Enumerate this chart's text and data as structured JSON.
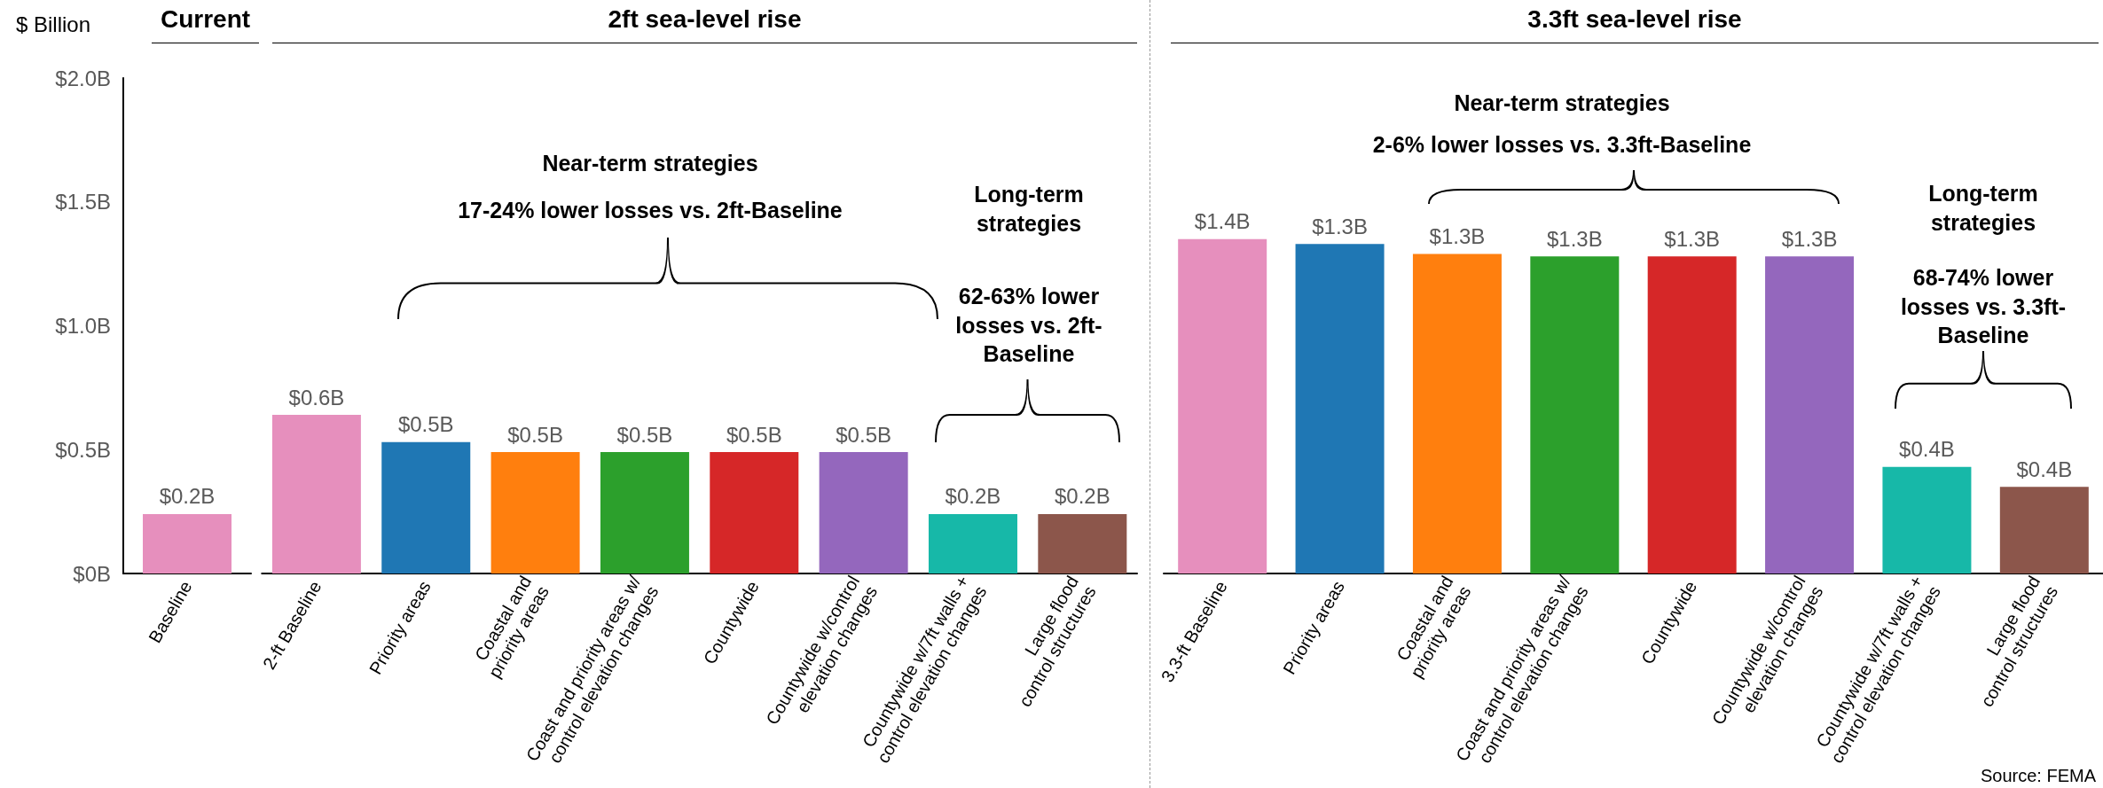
{
  "chart_data": [
    {
      "type": "bar",
      "title": "Current",
      "ylabel": "$ Billion",
      "categories": [
        "Baseline"
      ],
      "values": [
        0.24
      ],
      "colors": [
        "#e68fbd"
      ],
      "value_labels": [
        "$0.2B"
      ],
      "ylim": [
        0,
        2
      ],
      "yticks": [
        {
          "value": 0,
          "label": "$0B"
        },
        {
          "value": 0.5,
          "label": "$0.5B"
        },
        {
          "value": 1,
          "label": "$1.0B"
        },
        {
          "value": 1.5,
          "label": "$1.5B"
        },
        {
          "value": 2,
          "label": "$2.0B"
        }
      ]
    },
    {
      "type": "bar",
      "title": "2ft sea-level rise",
      "categories": [
        "2-ft Baseline",
        "Priority areas",
        "Coastal and\npriority areas",
        "Coast and priority areas w/\ncontrol elevation changes",
        "Countywide",
        "Countywide w/control\nelevation changes",
        "Countywide w/7ft walls +\ncontrol elevation changes",
        "Large flood\ncontrol structures"
      ],
      "values": [
        0.64,
        0.53,
        0.49,
        0.49,
        0.49,
        0.49,
        0.24,
        0.24
      ],
      "colors": [
        "#e68fbd",
        "#1f77b4",
        "#ff7f0e",
        "#2ca02c",
        "#d62728",
        "#9467bd",
        "#17b8a8",
        "#8c564b"
      ],
      "value_labels": [
        "$0.6B",
        "$0.5B",
        "$0.5B",
        "$0.5B",
        "$0.5B",
        "$0.5B",
        "$0.2B",
        "$0.2B"
      ],
      "ylim": [
        0,
        2
      ],
      "tick_labels": "x",
      "annotations": [
        "Near-term strategies",
        "17-24% lower losses vs. 2ft-Baseline",
        "Long-term strategies",
        "62-63% lower losses vs. 2ft-Baseline"
      ]
    },
    {
      "type": "bar",
      "title": "3.3ft sea-level rise",
      "categories": [
        "3.3-ft Baseline",
        "Priority areas",
        "Coastal and\npriority areas",
        "Coast and priority areas w/\ncontrol elevation changes",
        "Countywide",
        "Countywide w/control\nelevation changes",
        "Countywide w/7ft walls +\ncontrol elevation changes",
        "Large flood\ncontrol structures"
      ],
      "values": [
        1.35,
        1.33,
        1.29,
        1.28,
        1.28,
        1.28,
        0.43,
        0.35
      ],
      "colors": [
        "#e68fbd",
        "#1f77b4",
        "#ff7f0e",
        "#2ca02c",
        "#d62728",
        "#9467bd",
        "#17b8a8",
        "#8c564b"
      ],
      "value_labels": [
        "$1.4B",
        "$1.3B",
        "$1.3B",
        "$1.3B",
        "$1.3B",
        "$1.3B",
        "$0.4B",
        "$0.4B"
      ],
      "ylim": [
        0,
        2
      ],
      "tick_labels": "x",
      "annotations": [
        "Near-term strategies",
        "2-6% lower losses vs. 3.3ft-Baseline",
        "Long-term strategies",
        "68-74% lower losses vs. 3.3ft-Baseline",
        "Source: FEMA"
      ]
    }
  ]
}
